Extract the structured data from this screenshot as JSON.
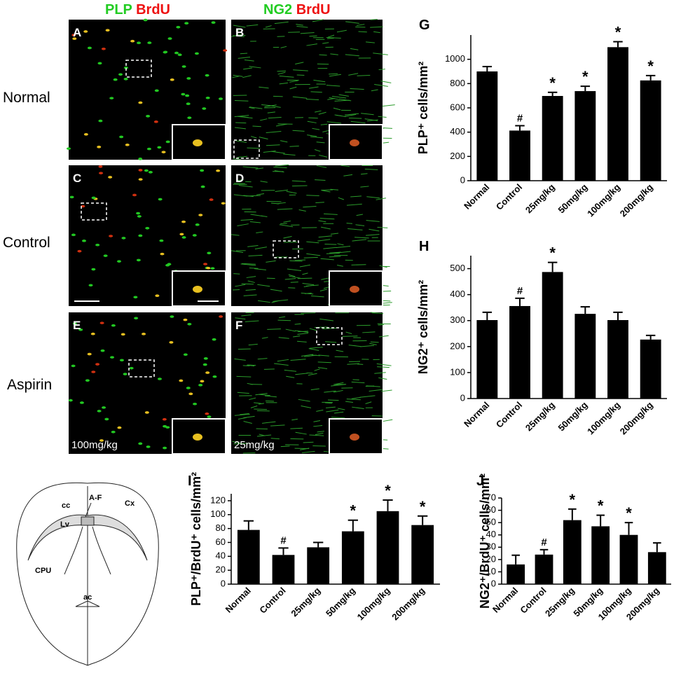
{
  "headers": [
    {
      "green": "PLP",
      "red": "BrdU"
    },
    {
      "green": "NG2",
      "red": "BrdU"
    }
  ],
  "rows": [
    "Normal",
    "Control",
    "Aspirin"
  ],
  "panels": [
    "A",
    "B",
    "C",
    "D",
    "E",
    "F"
  ],
  "doses": [
    "100mg/kg",
    "25mg/kg"
  ],
  "diagram": {
    "cc": "cc",
    "af": "A-F",
    "cx": "Cx",
    "lv": "Lv",
    "cpu": "CPU",
    "ac": "ac"
  },
  "chart_data": [
    {
      "type": "bar",
      "letter": "G",
      "y_label": "PLP⁺ cells/mm²",
      "categories": [
        "Normal",
        "Control",
        "25mg/kg",
        "50mg/kg",
        "100mg/kg",
        "200mg/kg"
      ],
      "values": [
        900,
        413,
        698,
        738,
        1100,
        826
      ],
      "errors": [
        40,
        40,
        30,
        40,
        45,
        40
      ],
      "markers": [
        null,
        "#",
        "*",
        "*",
        "*",
        "*"
      ],
      "ylim": [
        0,
        1200
      ],
      "yticks": [
        0,
        200,
        400,
        600,
        800,
        1000
      ],
      "color": "#000000"
    },
    {
      "type": "bar",
      "letter": "H",
      "y_label": "NG2⁺ cells/mm²",
      "categories": [
        "Normal",
        "Control",
        "25mg/kg",
        "50mg/kg",
        "100mg/kg",
        "200mg/kg"
      ],
      "values": [
        302,
        356,
        487,
        326,
        302,
        227
      ],
      "errors": [
        30,
        30,
        37,
        27,
        30,
        16
      ],
      "markers": [
        null,
        "#",
        "*",
        null,
        null,
        null
      ],
      "ylim": [
        0,
        550
      ],
      "yticks": [
        0,
        100,
        200,
        300,
        400,
        500
      ],
      "color": "#000000"
    },
    {
      "type": "bar",
      "letter": "I",
      "y_label": "PLP⁺/BrdU⁺ cells/mm²",
      "categories": [
        "Normal",
        "Control",
        "25mg/kg",
        "50mg/kg",
        "100mg/kg",
        "200mg/kg"
      ],
      "values": [
        78,
        42,
        53,
        76,
        105,
        85
      ],
      "errors": [
        13,
        10,
        7,
        16,
        16,
        13
      ],
      "markers": [
        null,
        "#",
        null,
        "*",
        "*",
        "*"
      ],
      "ylim": [
        0,
        130
      ],
      "yticks": [
        0,
        20,
        40,
        60,
        80,
        100,
        120
      ],
      "color": "#000000"
    },
    {
      "type": "bar",
      "letter": "J",
      "y_label": "NG2⁺/BrdU⁺ cells/mm²",
      "categories": [
        "Normal",
        "Control",
        "25mg/kg",
        "50mg/kg",
        "100mg/kg",
        "200mg/kg"
      ],
      "values": [
        16,
        24,
        52,
        47,
        40,
        26
      ],
      "errors": [
        7.5,
        4,
        9,
        9,
        10,
        7.5
      ],
      "markers": [
        null,
        "#",
        "*",
        "*",
        "*",
        null
      ],
      "ylim": [
        0,
        70
      ],
      "yticks": [
        0,
        10,
        20,
        30,
        40,
        50,
        60,
        70
      ],
      "color": "#000000"
    }
  ]
}
